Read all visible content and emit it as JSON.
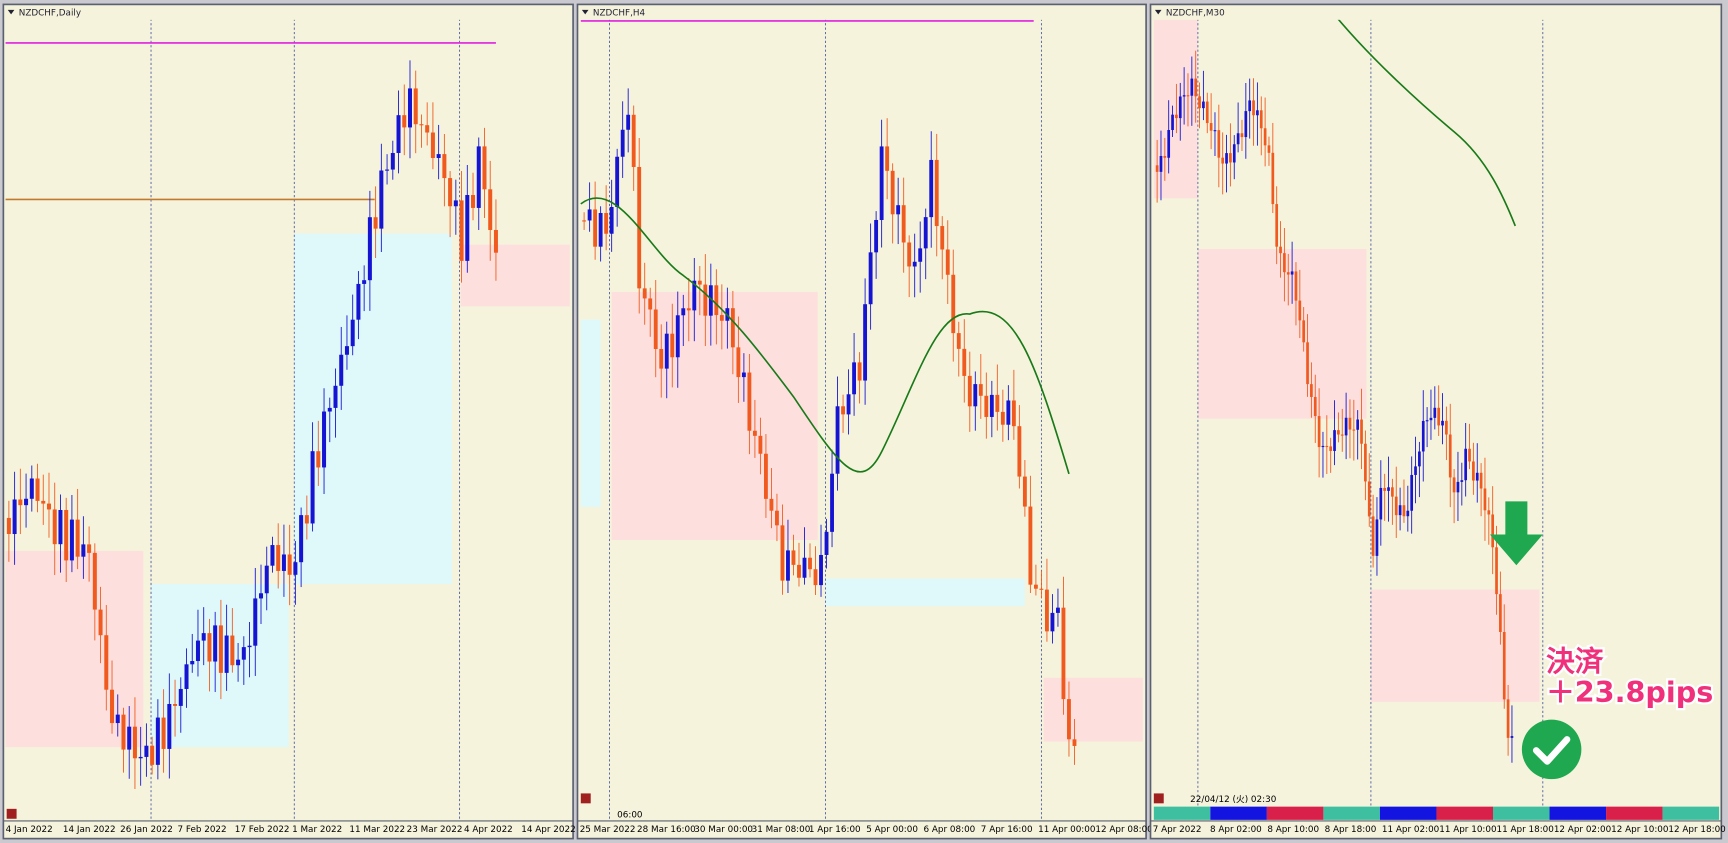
{
  "panels": [
    {
      "title": "NZDCHF,Daily",
      "x_labels": [
        "4 Jan 2022",
        "14 Jan 2022",
        "26 Jan 2022",
        "7 Feb 2022",
        "17 Feb 2022",
        "1 Mar 2022",
        "11 Mar 2022",
        "23 Mar 2022",
        "4 Apr 2022",
        "14 Apr 2022"
      ]
    },
    {
      "title": "NZDCHF,H4",
      "x_labels": [
        "25 Mar 2022",
        "28 Mar 16:00",
        "30 Mar 00:00",
        "31 Mar 08:00",
        "1 Apr 16:00",
        "5 Apr 00:00",
        "6 Apr 08:00",
        "7 Apr 16:00",
        "11 Apr 00:00",
        "12 Apr 08:00"
      ],
      "status": "06:00"
    },
    {
      "title": "NZDCHF,M30",
      "x_labels": [
        "7 Apr 2022",
        "8 Apr 02:00",
        "8 Apr 10:00",
        "8 Apr 18:00",
        "11 Apr 02:00",
        "11 Apr 10:00",
        "11 Apr 18:00",
        "12 Apr 02:00",
        "12 Apr 10:00",
        "12 Apr 18:00"
      ],
      "status": "22/04/12 (火) 02:30"
    }
  ],
  "annotation": {
    "line1": "決済",
    "line2": "＋23.8pips"
  }
}
